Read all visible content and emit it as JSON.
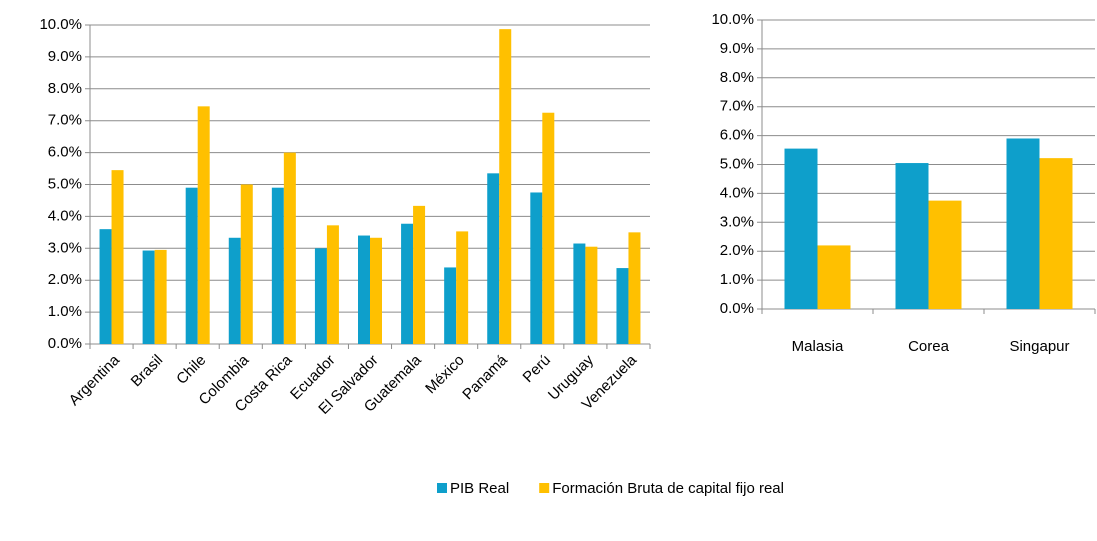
{
  "chart_data": [
    {
      "type": "bar",
      "categories": [
        "Argentina",
        "Brasil",
        "Chile",
        "Colombia",
        "Costa Rica",
        "Ecuador",
        "El Salvador",
        "Guatemala",
        "México",
        "Panamá",
        "Perú",
        "Uruguay",
        "Venezuela"
      ],
      "series": [
        {
          "name": "PIB Real",
          "color": "#0e9fcb",
          "values": [
            3.6,
            2.93,
            4.9,
            3.33,
            4.9,
            3.0,
            3.4,
            3.77,
            2.4,
            5.35,
            4.75,
            3.15,
            2.38
          ]
        },
        {
          "name": "Formación Bruta de capital fijo real",
          "color": "#ffc000",
          "values": [
            5.45,
            2.95,
            7.45,
            5.0,
            6.0,
            3.72,
            3.33,
            4.33,
            3.53,
            9.87,
            7.25,
            3.05,
            3.5
          ]
        }
      ],
      "ylim": [
        0,
        10
      ],
      "yticks": [
        {
          "value": 0,
          "label": "0.0%"
        },
        {
          "value": 1,
          "label": "1.0%"
        },
        {
          "value": 2,
          "label": "2.0%"
        },
        {
          "value": 3,
          "label": "3.0%"
        },
        {
          "value": 4,
          "label": "4.0%"
        },
        {
          "value": 5,
          "label": "5.0%"
        },
        {
          "value": 6,
          "label": "6.0%"
        },
        {
          "value": 7,
          "label": "7.0%"
        },
        {
          "value": 8,
          "label": "8.0%"
        },
        {
          "value": 9,
          "label": "9.0%"
        },
        {
          "value": 10,
          "label": "10.0%"
        }
      ],
      "grid": true,
      "legend": "bottom"
    },
    {
      "type": "bar",
      "categories": [
        "Malasia",
        "Corea",
        "Singapur"
      ],
      "series": [
        {
          "color": "#0e9fcb",
          "values": [
            5.55,
            5.05,
            5.9
          ]
        },
        {
          "color": "#ffc000",
          "values": [
            2.2,
            3.75,
            5.22
          ]
        }
      ],
      "ylim": [
        0,
        10
      ],
      "yticks": [
        {
          "value": 0,
          "label": "0.0%"
        },
        {
          "value": 1,
          "label": "1.0%"
        },
        {
          "value": 2,
          "label": "2.0%"
        },
        {
          "value": 3,
          "label": "3.0%"
        },
        {
          "value": 4,
          "label": "4.0%"
        },
        {
          "value": 5,
          "label": "5.0%"
        },
        {
          "value": 6,
          "label": "6.0%"
        },
        {
          "value": 7,
          "label": "7.0%"
        },
        {
          "value": 8,
          "label": "8.0%"
        },
        {
          "value": 9,
          "label": "9.0%"
        },
        {
          "value": 10,
          "label": "10.0%"
        }
      ],
      "grid": true
    }
  ]
}
